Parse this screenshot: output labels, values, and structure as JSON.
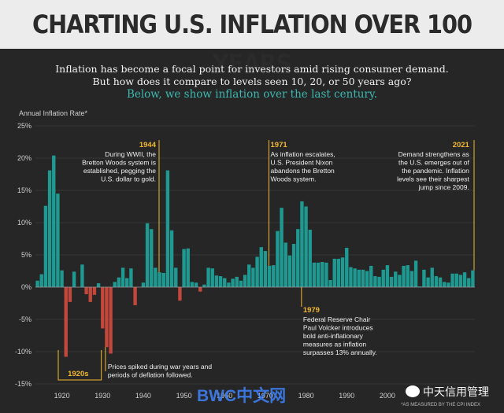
{
  "title": "CHARTING U.S. INFLATION OVER 100 YEARS",
  "subtitle_line1": "Inflation has become a focal point for investors amid rising consumer demand.",
  "subtitle_line2": "But how does it compare to levels seen 10, 20, or 50 years ago?",
  "subtitle_line3": "Below, we show inflation over the last century.",
  "colors": {
    "positive": "#1f9a92",
    "negative": "#c4473b",
    "accent": "#f2b92e",
    "background": "#262626"
  },
  "watermark_1": "BWC中文网",
  "watermark_2": "中天信用管理",
  "source_note": "*AS MEASURED BY THE CPI INDEX",
  "chart_data": {
    "type": "bar",
    "ylabel": "Annual Inflation Rate*",
    "ylim": [
      -15,
      25
    ],
    "yticks": [
      25,
      20,
      15,
      10,
      5,
      0,
      -5,
      -10,
      -15
    ],
    "ytick_labels": [
      "25%",
      "20%",
      "15%",
      "10%",
      "5%",
      "0%",
      "-5%",
      "-10%",
      "-15%"
    ],
    "xticks": [
      1920,
      1930,
      1940,
      1950,
      1960,
      1970,
      1980,
      1990,
      2000
    ],
    "grid": true,
    "x": [
      1914,
      1915,
      1916,
      1917,
      1918,
      1919,
      1920,
      1921,
      1922,
      1923,
      1924,
      1925,
      1926,
      1927,
      1928,
      1929,
      1930,
      1931,
      1932,
      1933,
      1934,
      1935,
      1936,
      1937,
      1938,
      1939,
      1940,
      1941,
      1942,
      1943,
      1944,
      1945,
      1946,
      1947,
      1948,
      1949,
      1950,
      1951,
      1952,
      1953,
      1954,
      1955,
      1956,
      1957,
      1958,
      1959,
      1960,
      1961,
      1962,
      1963,
      1964,
      1965,
      1966,
      1967,
      1968,
      1969,
      1970,
      1971,
      1972,
      1973,
      1974,
      1975,
      1976,
      1977,
      1978,
      1979,
      1980,
      1981,
      1982,
      1983,
      1984,
      1985,
      1986,
      1987,
      1988,
      1989,
      1990,
      1991,
      1992,
      1993,
      1994,
      1995,
      1996,
      1997,
      1998,
      1999,
      2000,
      2001,
      2002,
      2003,
      2004,
      2005,
      2006,
      2007,
      2008,
      2009,
      2010,
      2011,
      2012,
      2013,
      2014,
      2015,
      2016,
      2017,
      2018,
      2019,
      2020,
      2021
    ],
    "values": [
      1.0,
      2.0,
      12.6,
      18.1,
      20.4,
      14.5,
      2.6,
      -10.8,
      -2.3,
      2.4,
      0.0,
      3.5,
      -1.1,
      -2.3,
      -1.2,
      0.6,
      -6.4,
      -9.3,
      -10.3,
      0.8,
      1.5,
      3.0,
      1.4,
      2.9,
      -2.8,
      0.0,
      0.7,
      9.9,
      9.0,
      3.0,
      2.3,
      2.2,
      18.1,
      8.8,
      3.0,
      -2.1,
      5.9,
      6.0,
      0.8,
      0.7,
      -0.7,
      0.4,
      3.0,
      2.9,
      1.8,
      1.7,
      1.4,
      0.7,
      1.3,
      1.6,
      1.0,
      1.9,
      3.5,
      3.0,
      4.7,
      6.2,
      5.6,
      3.3,
      3.4,
      8.7,
      12.3,
      6.9,
      4.9,
      6.7,
      9.0,
      13.3,
      12.5,
      8.9,
      3.8,
      3.8,
      3.9,
      3.8,
      1.1,
      4.4,
      4.4,
      4.6,
      6.1,
      3.1,
      2.9,
      2.7,
      2.7,
      2.5,
      3.3,
      1.7,
      1.6,
      2.7,
      3.4,
      1.6,
      2.4,
      1.9,
      3.3,
      3.4,
      2.5,
      4.1,
      0.1,
      2.7,
      1.5,
      3.0,
      1.7,
      1.5,
      0.8,
      0.7,
      2.1,
      2.1,
      1.9,
      2.3,
      1.4,
      2.6
    ],
    "annotations": [
      {
        "year": "1944",
        "lines": [
          "During WWII, the",
          "Bretton Woods system is",
          "established, pegging the",
          "U.S. dollar to gold."
        ]
      },
      {
        "year": "1971",
        "lines": [
          "As inflation escalates,",
          "U.S. President Nixon",
          "abandons the Bretton",
          "Woods system."
        ]
      },
      {
        "year": "2021",
        "lines": [
          "Demand strengthens as",
          "the U.S. emerges out of",
          "the pandemic. Inflation",
          "levels see their sharpest",
          "jump since 2009."
        ]
      },
      {
        "year": "1979",
        "lines": [
          "Federal Reserve Chair",
          "Paul Volcker introduces",
          "bold anti-inflationary",
          "measures as inflation",
          "surpasses 13% annually."
        ]
      },
      {
        "year": "1920s",
        "lines": []
      },
      {
        "year": "",
        "lines": [
          "Prices spiked during war years and",
          "periods of deflation followed."
        ]
      }
    ]
  }
}
